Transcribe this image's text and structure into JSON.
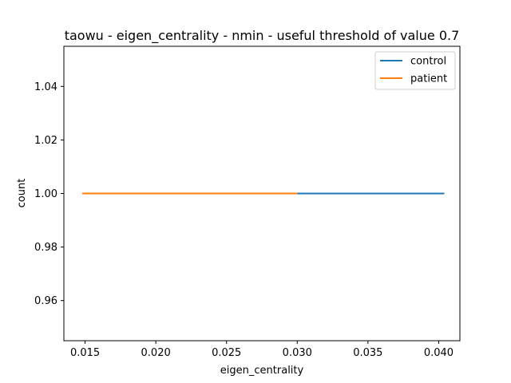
{
  "chart_data": {
    "type": "line",
    "title": "taowu - eigen_centrality - nmin - useful threshold of value 0.7",
    "xlabel": "eigen_centrality",
    "ylabel": "count",
    "xlim": [
      0.0135,
      0.0415
    ],
    "ylim": [
      0.945,
      1.055
    ],
    "xticks": [
      0.015,
      0.02,
      0.025,
      0.03,
      0.035,
      0.04
    ],
    "xtick_labels": [
      "0.015",
      "0.020",
      "0.025",
      "0.030",
      "0.035",
      "0.040"
    ],
    "yticks": [
      0.96,
      0.98,
      1.0,
      1.02,
      1.04
    ],
    "ytick_labels": [
      "0.96",
      "0.98",
      "1.00",
      "1.02",
      "1.04"
    ],
    "grid": false,
    "legend_position": "top-right",
    "series": [
      {
        "name": "control",
        "color": "#1f77b4",
        "x": [
          0.03,
          0.0404
        ],
        "y": [
          1.0,
          1.0
        ]
      },
      {
        "name": "patient",
        "color": "#ff7f0e",
        "x": [
          0.0148,
          0.03
        ],
        "y": [
          1.0,
          1.0
        ]
      }
    ]
  }
}
